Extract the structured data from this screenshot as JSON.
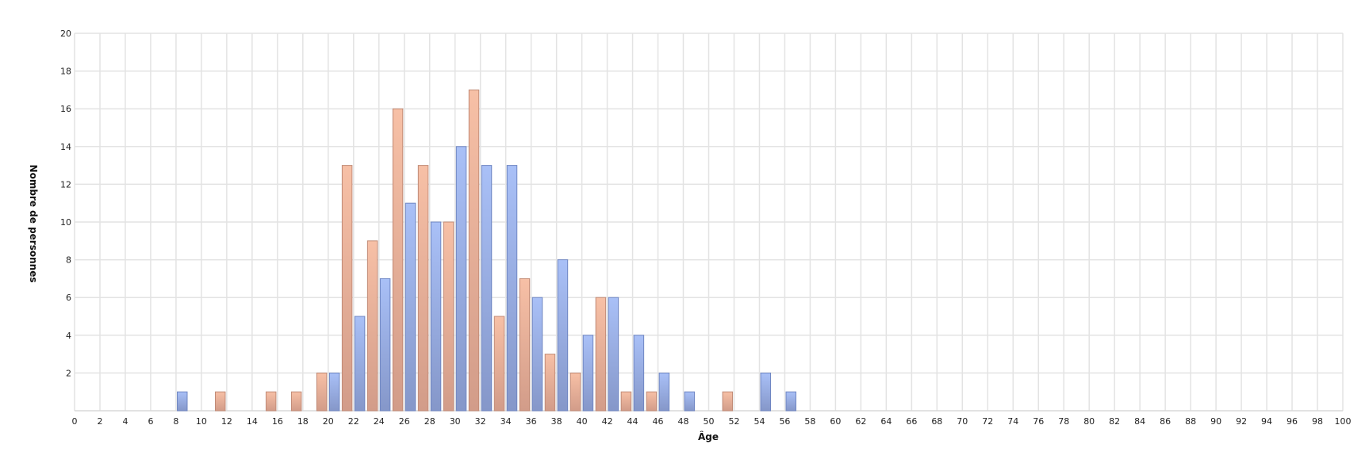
{
  "chart_data": {
    "type": "bar",
    "title": "",
    "xlabel": "Âge",
    "ylabel": "Nombre de personnes",
    "xlim": [
      0,
      100
    ],
    "ylim": [
      0,
      20
    ],
    "x_ticks": [
      0,
      2,
      4,
      6,
      8,
      10,
      12,
      14,
      16,
      18,
      20,
      22,
      24,
      26,
      28,
      30,
      32,
      34,
      36,
      38,
      40,
      42,
      44,
      46,
      48,
      50,
      52,
      54,
      56,
      58,
      60,
      62,
      64,
      66,
      68,
      70,
      72,
      74,
      76,
      78,
      80,
      82,
      84,
      86,
      88,
      90,
      92,
      94,
      96,
      98,
      100
    ],
    "y_ticks": [
      2,
      4,
      6,
      8,
      10,
      12,
      14,
      16,
      18,
      20
    ],
    "grid": true,
    "colors": {
      "even_age": "#a9c0f7",
      "odd_age": "#f7c0a6",
      "even_age_border": "#6f86c2",
      "odd_age_border": "#c08a76"
    },
    "x": [
      8,
      11,
      15,
      17,
      19,
      20,
      21,
      22,
      23,
      24,
      25,
      26,
      27,
      28,
      29,
      30,
      31,
      32,
      33,
      34,
      35,
      36,
      37,
      38,
      39,
      40,
      41,
      42,
      43,
      44,
      45,
      46,
      48,
      51,
      54,
      56
    ],
    "values": [
      1,
      1,
      1,
      1,
      2,
      2,
      13,
      5,
      9,
      7,
      16,
      11,
      13,
      10,
      10,
      14,
      17,
      13,
      5,
      13,
      7,
      6,
      3,
      8,
      2,
      4,
      6,
      6,
      1,
      4,
      1,
      2,
      1,
      1,
      2,
      1
    ]
  }
}
